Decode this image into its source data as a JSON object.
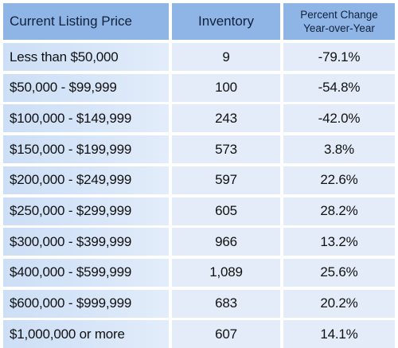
{
  "table": {
    "headers": {
      "price": "Current Listing Price",
      "inventory": "Inventory",
      "change_line1": "Percent Change",
      "change_line2": "Year-over-Year"
    },
    "rows": [
      {
        "price": "Less than $50,000",
        "inventory": "9",
        "change": "-79.1%"
      },
      {
        "price": "$50,000 - $99,999",
        "inventory": "100",
        "change": "-54.8%"
      },
      {
        "price": "$100,000 - $149,999",
        "inventory": "243",
        "change": "-42.0%"
      },
      {
        "price": "$150,000 - $199,999",
        "inventory": "573",
        "change": "3.8%"
      },
      {
        "price": "$200,000 - $249,999",
        "inventory": "597",
        "change": "22.6%"
      },
      {
        "price": "$250,000 - $299,999",
        "inventory": "605",
        "change": "28.2%"
      },
      {
        "price": "$300,000 - $399,999",
        "inventory": "966",
        "change": "13.2%"
      },
      {
        "price": "$400,000 - $599,999",
        "inventory": "1,089",
        "change": "25.6%"
      },
      {
        "price": "$600,000 - $999,999",
        "inventory": "683",
        "change": "20.2%"
      },
      {
        "price": "$1,000,000 or more",
        "inventory": "607",
        "change": "14.1%"
      }
    ]
  },
  "colors": {
    "header_bg": "#8fb5e6",
    "cell_bg": "#e3ecf8",
    "first_col_bg": "#cddff6"
  }
}
